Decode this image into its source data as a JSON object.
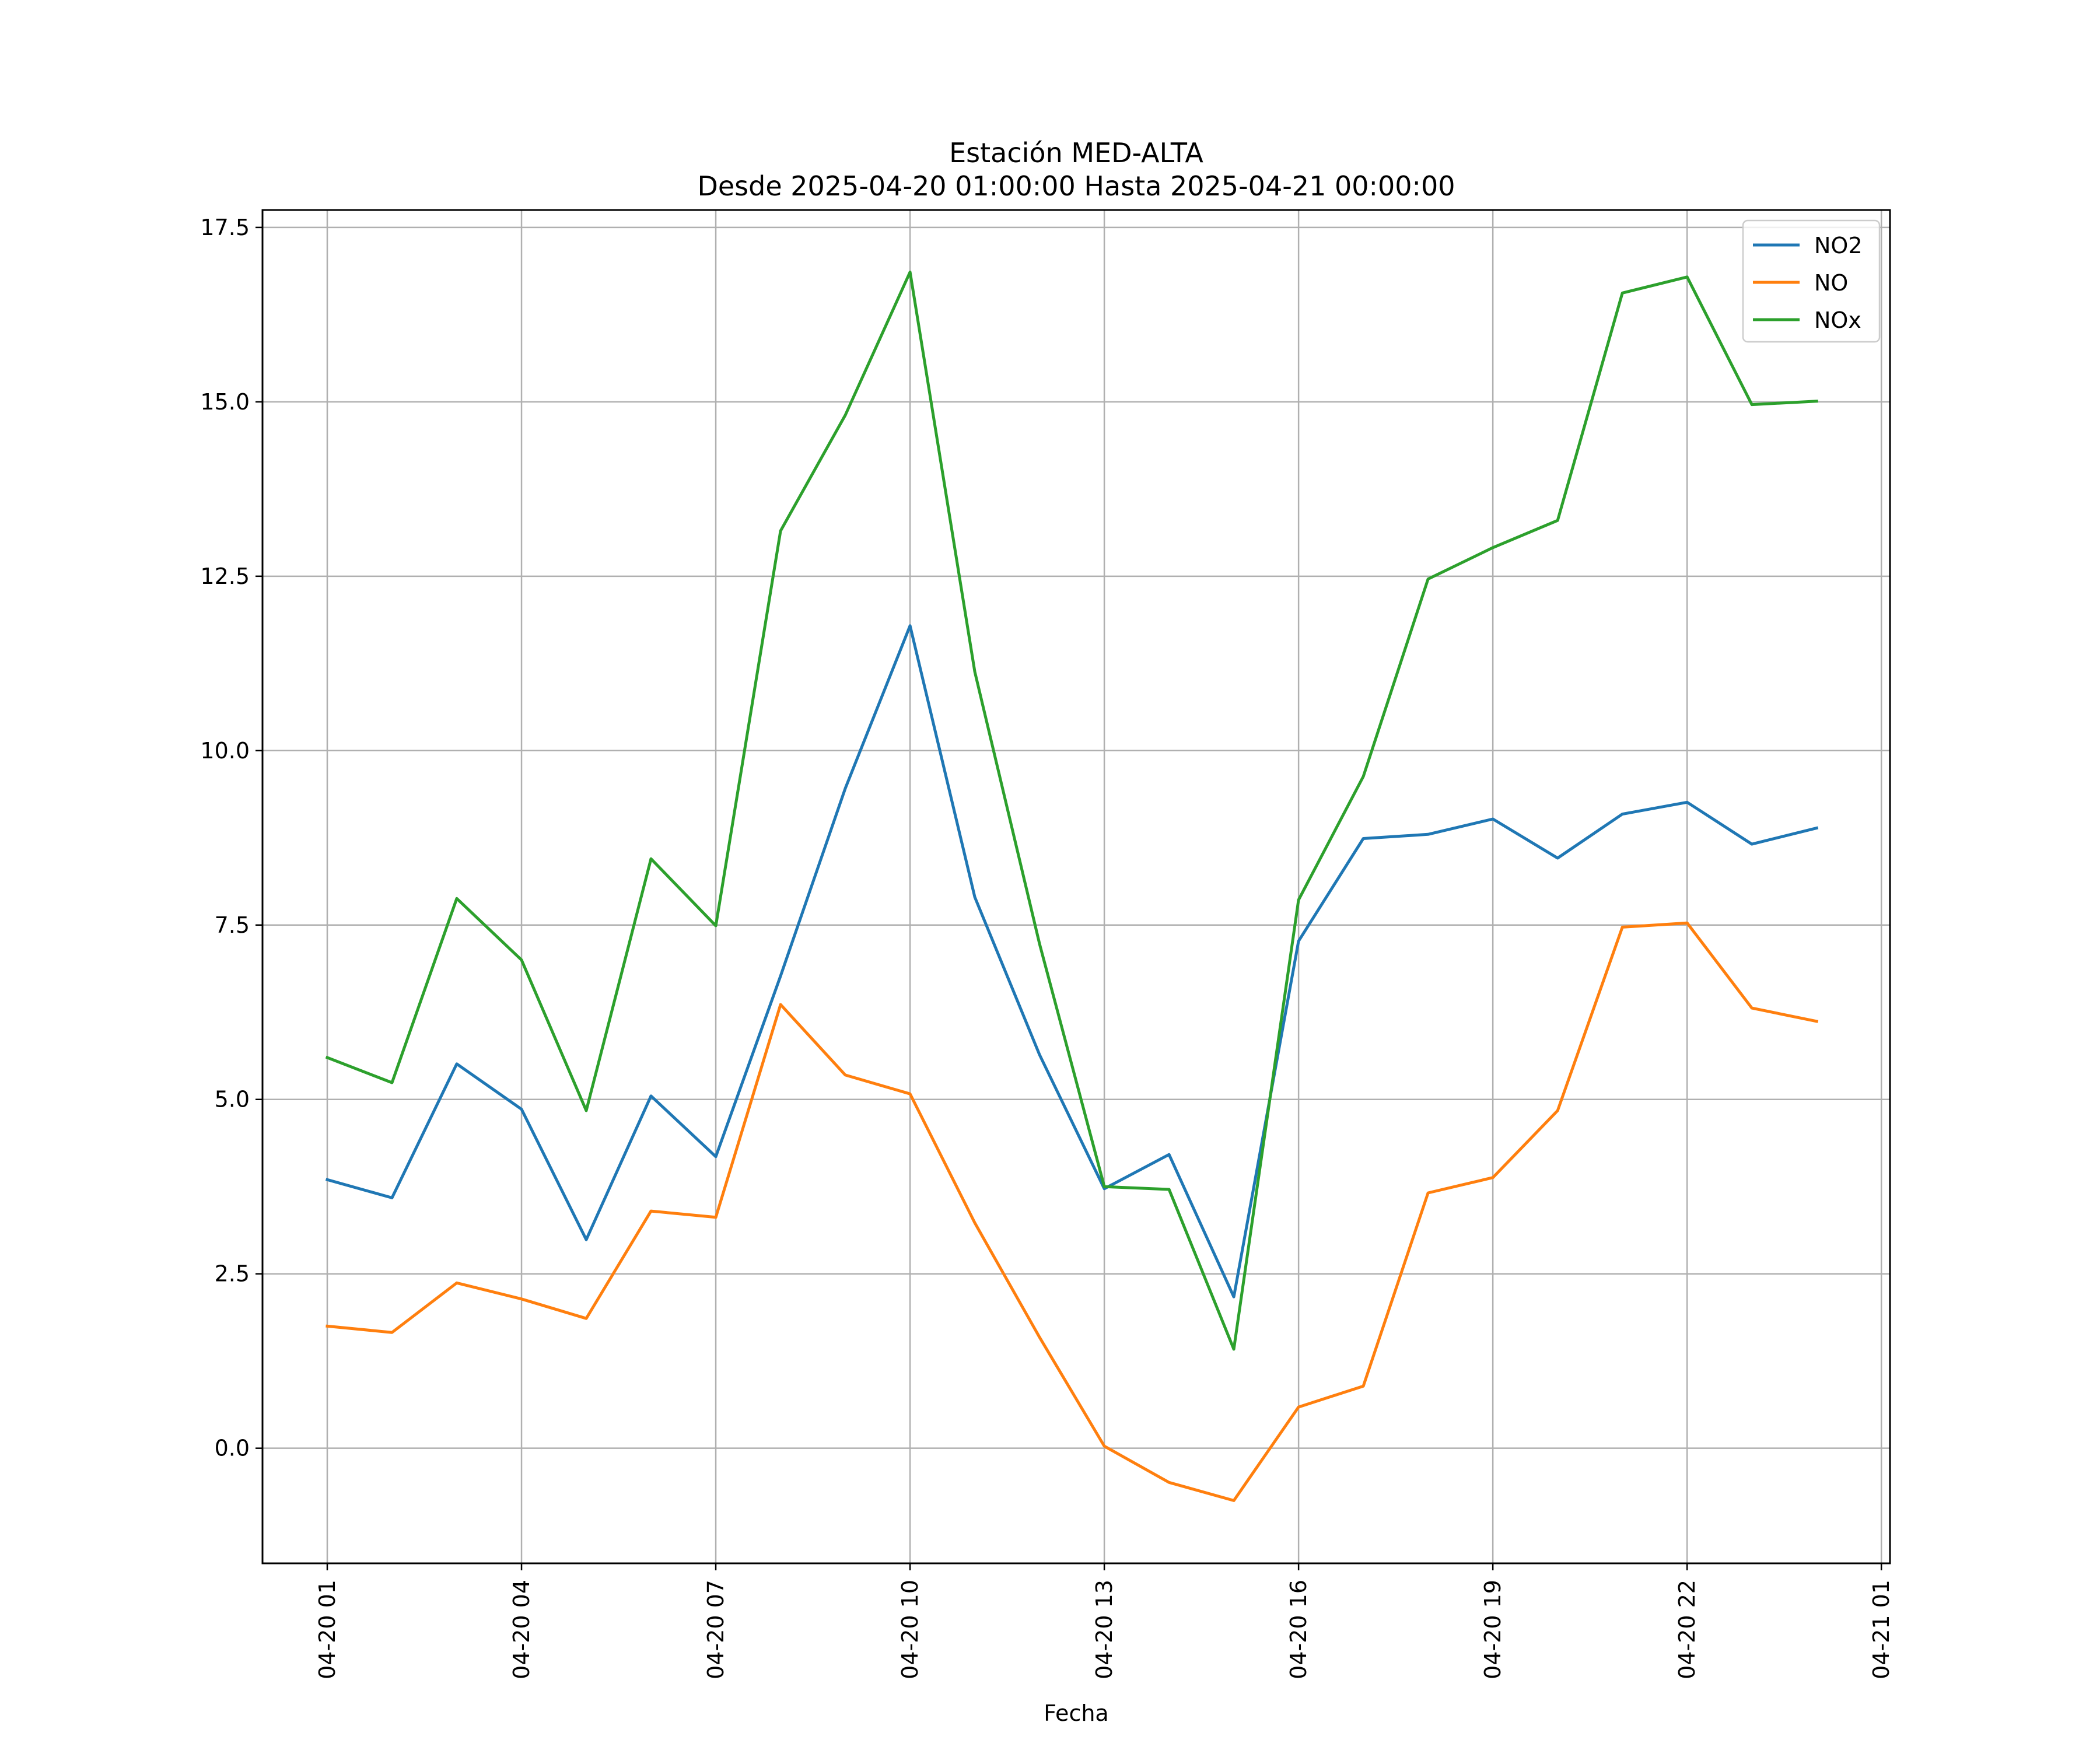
{
  "chart_data": {
    "type": "line",
    "title": "Estación MED-ALTA",
    "subtitle": "Desde 2025-04-20 01:00:00 Hasta 2025-04-21 00:00:00",
    "xlabel": "Fecha",
    "ylabel": "",
    "x": [
      "2025-04-20 01:00",
      "2025-04-20 02:00",
      "2025-04-20 03:00",
      "2025-04-20 04:00",
      "2025-04-20 05:00",
      "2025-04-20 06:00",
      "2025-04-20 07:00",
      "2025-04-20 08:00",
      "2025-04-20 09:00",
      "2025-04-20 10:00",
      "2025-04-20 11:00",
      "2025-04-20 12:00",
      "2025-04-20 13:00",
      "2025-04-20 14:00",
      "2025-04-20 15:00",
      "2025-04-20 16:00",
      "2025-04-20 17:00",
      "2025-04-20 18:00",
      "2025-04-20 19:00",
      "2025-04-20 20:00",
      "2025-04-20 21:00",
      "2025-04-20 22:00",
      "2025-04-20 23:00",
      "2025-04-21 00:00"
    ],
    "xlim": [
      "2025-04-20 00:00",
      "2025-04-21 01:08"
    ],
    "x_ticks": [
      "2025-04-20 01:00",
      "2025-04-20 04:00",
      "2025-04-20 07:00",
      "2025-04-20 10:00",
      "2025-04-20 13:00",
      "2025-04-20 16:00",
      "2025-04-20 19:00",
      "2025-04-20 22:00",
      "2025-04-21 01:00"
    ],
    "x_tick_labels": [
      "04-20 01",
      "04-20 04",
      "04-20 07",
      "04-20 10",
      "04-20 13",
      "04-20 16",
      "04-20 19",
      "04-20 22",
      "04-21 01"
    ],
    "ylim": [
      -1.65,
      17.75
    ],
    "y_ticks": [
      0.0,
      2.5,
      5.0,
      7.5,
      10.0,
      12.5,
      15.0,
      17.5
    ],
    "y_tick_labels": [
      "0.0",
      "2.5",
      "5.0",
      "7.5",
      "10.0",
      "12.5",
      "15.0",
      "17.5"
    ],
    "grid": true,
    "legend_position": "top-right",
    "series": [
      {
        "name": "NO2",
        "color": "#1f77b4",
        "values": [
          3.85,
          3.59,
          5.51,
          4.86,
          2.99,
          5.05,
          4.18,
          6.77,
          9.46,
          11.79,
          7.9,
          5.64,
          3.72,
          4.21,
          2.17,
          7.27,
          8.74,
          8.8,
          9.02,
          8.46,
          9.09,
          9.26,
          8.66,
          8.89
        ]
      },
      {
        "name": "NO",
        "color": "#ff7f0e",
        "values": [
          1.75,
          1.66,
          2.37,
          2.14,
          1.86,
          3.4,
          3.31,
          6.36,
          5.35,
          5.08,
          3.23,
          1.59,
          0.03,
          -0.49,
          -0.75,
          0.59,
          0.89,
          3.66,
          3.88,
          4.84,
          7.47,
          7.53,
          6.31,
          6.12
        ]
      },
      {
        "name": "NOx",
        "color": "#2ca02c",
        "values": [
          5.6,
          5.24,
          7.88,
          7.0,
          4.84,
          8.45,
          7.49,
          13.15,
          14.81,
          16.86,
          11.13,
          7.23,
          3.75,
          3.71,
          1.42,
          7.86,
          9.63,
          12.46,
          12.91,
          13.3,
          16.56,
          16.79,
          14.96,
          15.01
        ]
      }
    ]
  }
}
